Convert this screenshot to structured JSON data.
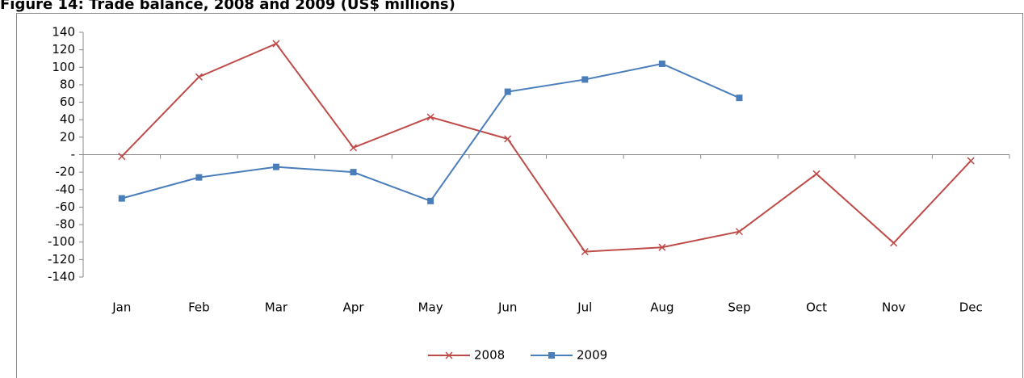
{
  "chart_data": {
    "type": "line",
    "title": "Figure 14: Trade balance, 2008 and 2009 (US$ millions)",
    "categories": [
      "Jan",
      "Feb",
      "Mar",
      "Apr",
      "May",
      "Jun",
      "Jul",
      "Aug",
      "Sep",
      "Oct",
      "Nov",
      "Dec"
    ],
    "series": [
      {
        "name": "2008",
        "color": "#be4b48",
        "marker": "x",
        "values": [
          -2,
          89,
          127,
          8,
          43,
          18,
          -111,
          -106,
          -88,
          -22,
          -101,
          -7
        ]
      },
      {
        "name": "2009",
        "color": "#4a7ebb",
        "marker": "square",
        "values": [
          -50,
          -26,
          -14,
          -20,
          -53,
          72,
          86,
          104,
          65,
          null,
          null,
          null
        ]
      }
    ],
    "ylim": [
      -140,
      140
    ],
    "yticks": [
      -140,
      -120,
      -100,
      -80,
      -60,
      -40,
      -20,
      {
        "value": 0,
        "label": "-"
      },
      20,
      40,
      60,
      80,
      100,
      120,
      140
    ],
    "legend": "bottom"
  }
}
